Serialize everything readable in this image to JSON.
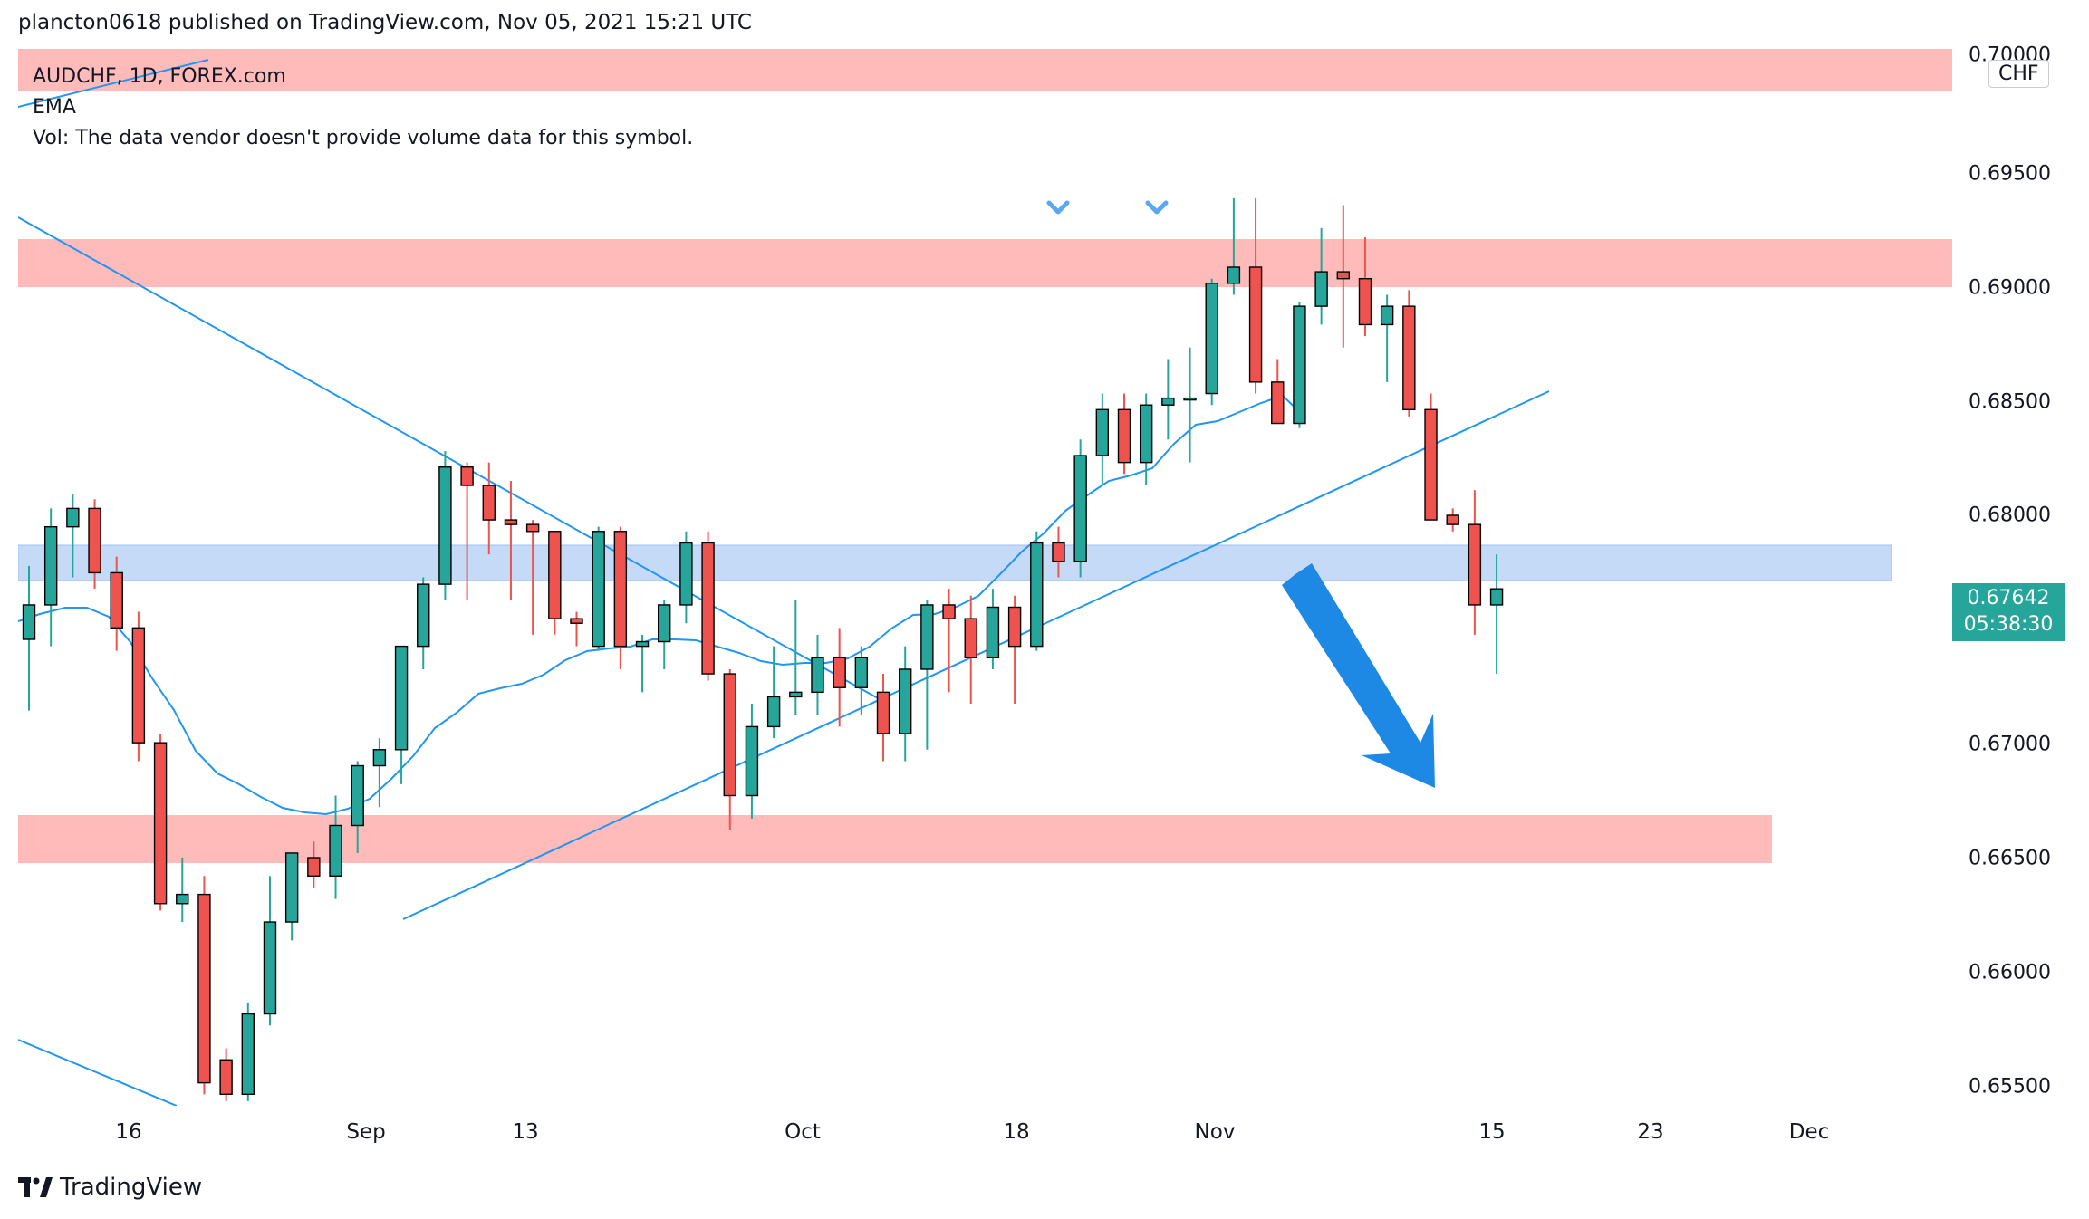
{
  "header": {
    "publisher_line": "plancton0618 published on TradingView.com, Nov 05, 2021 15:21 UTC"
  },
  "legend": {
    "symbol_line": "AUDCHF, 1D, FOREX.com",
    "indicator": "EMA",
    "volume_note": "Vol: The data vendor doesn't provide volume data for this symbol."
  },
  "price_axis": {
    "currency": "CHF",
    "last_price": "0.67642",
    "countdown": "05:38:30",
    "ticks": [
      "0.70000",
      "0.69500",
      "0.69000",
      "0.68500",
      "0.68000",
      "0.67500",
      "0.67000",
      "0.66500",
      "0.66000",
      "0.65500"
    ]
  },
  "time_axis": {
    "ticks": [
      "16",
      "Sep",
      "13",
      "Oct",
      "18",
      "Nov",
      "15",
      "23",
      "Dec"
    ]
  },
  "footer": {
    "brand": "TradingView"
  },
  "colors": {
    "up_candle": "#26a69a",
    "down_candle": "#ef5350",
    "ema_line": "#2196f3",
    "resistance_zone": "#ffb3b3",
    "support_zone": "#bbd4f5",
    "forecast_arrow": "#1e88e5"
  },
  "chart_data": {
    "type": "candlestick",
    "symbol": "AUDCHF",
    "interval": "1D",
    "exchange": "FOREX.com",
    "y_range": [
      0.654,
      0.7
    ]
  }
}
